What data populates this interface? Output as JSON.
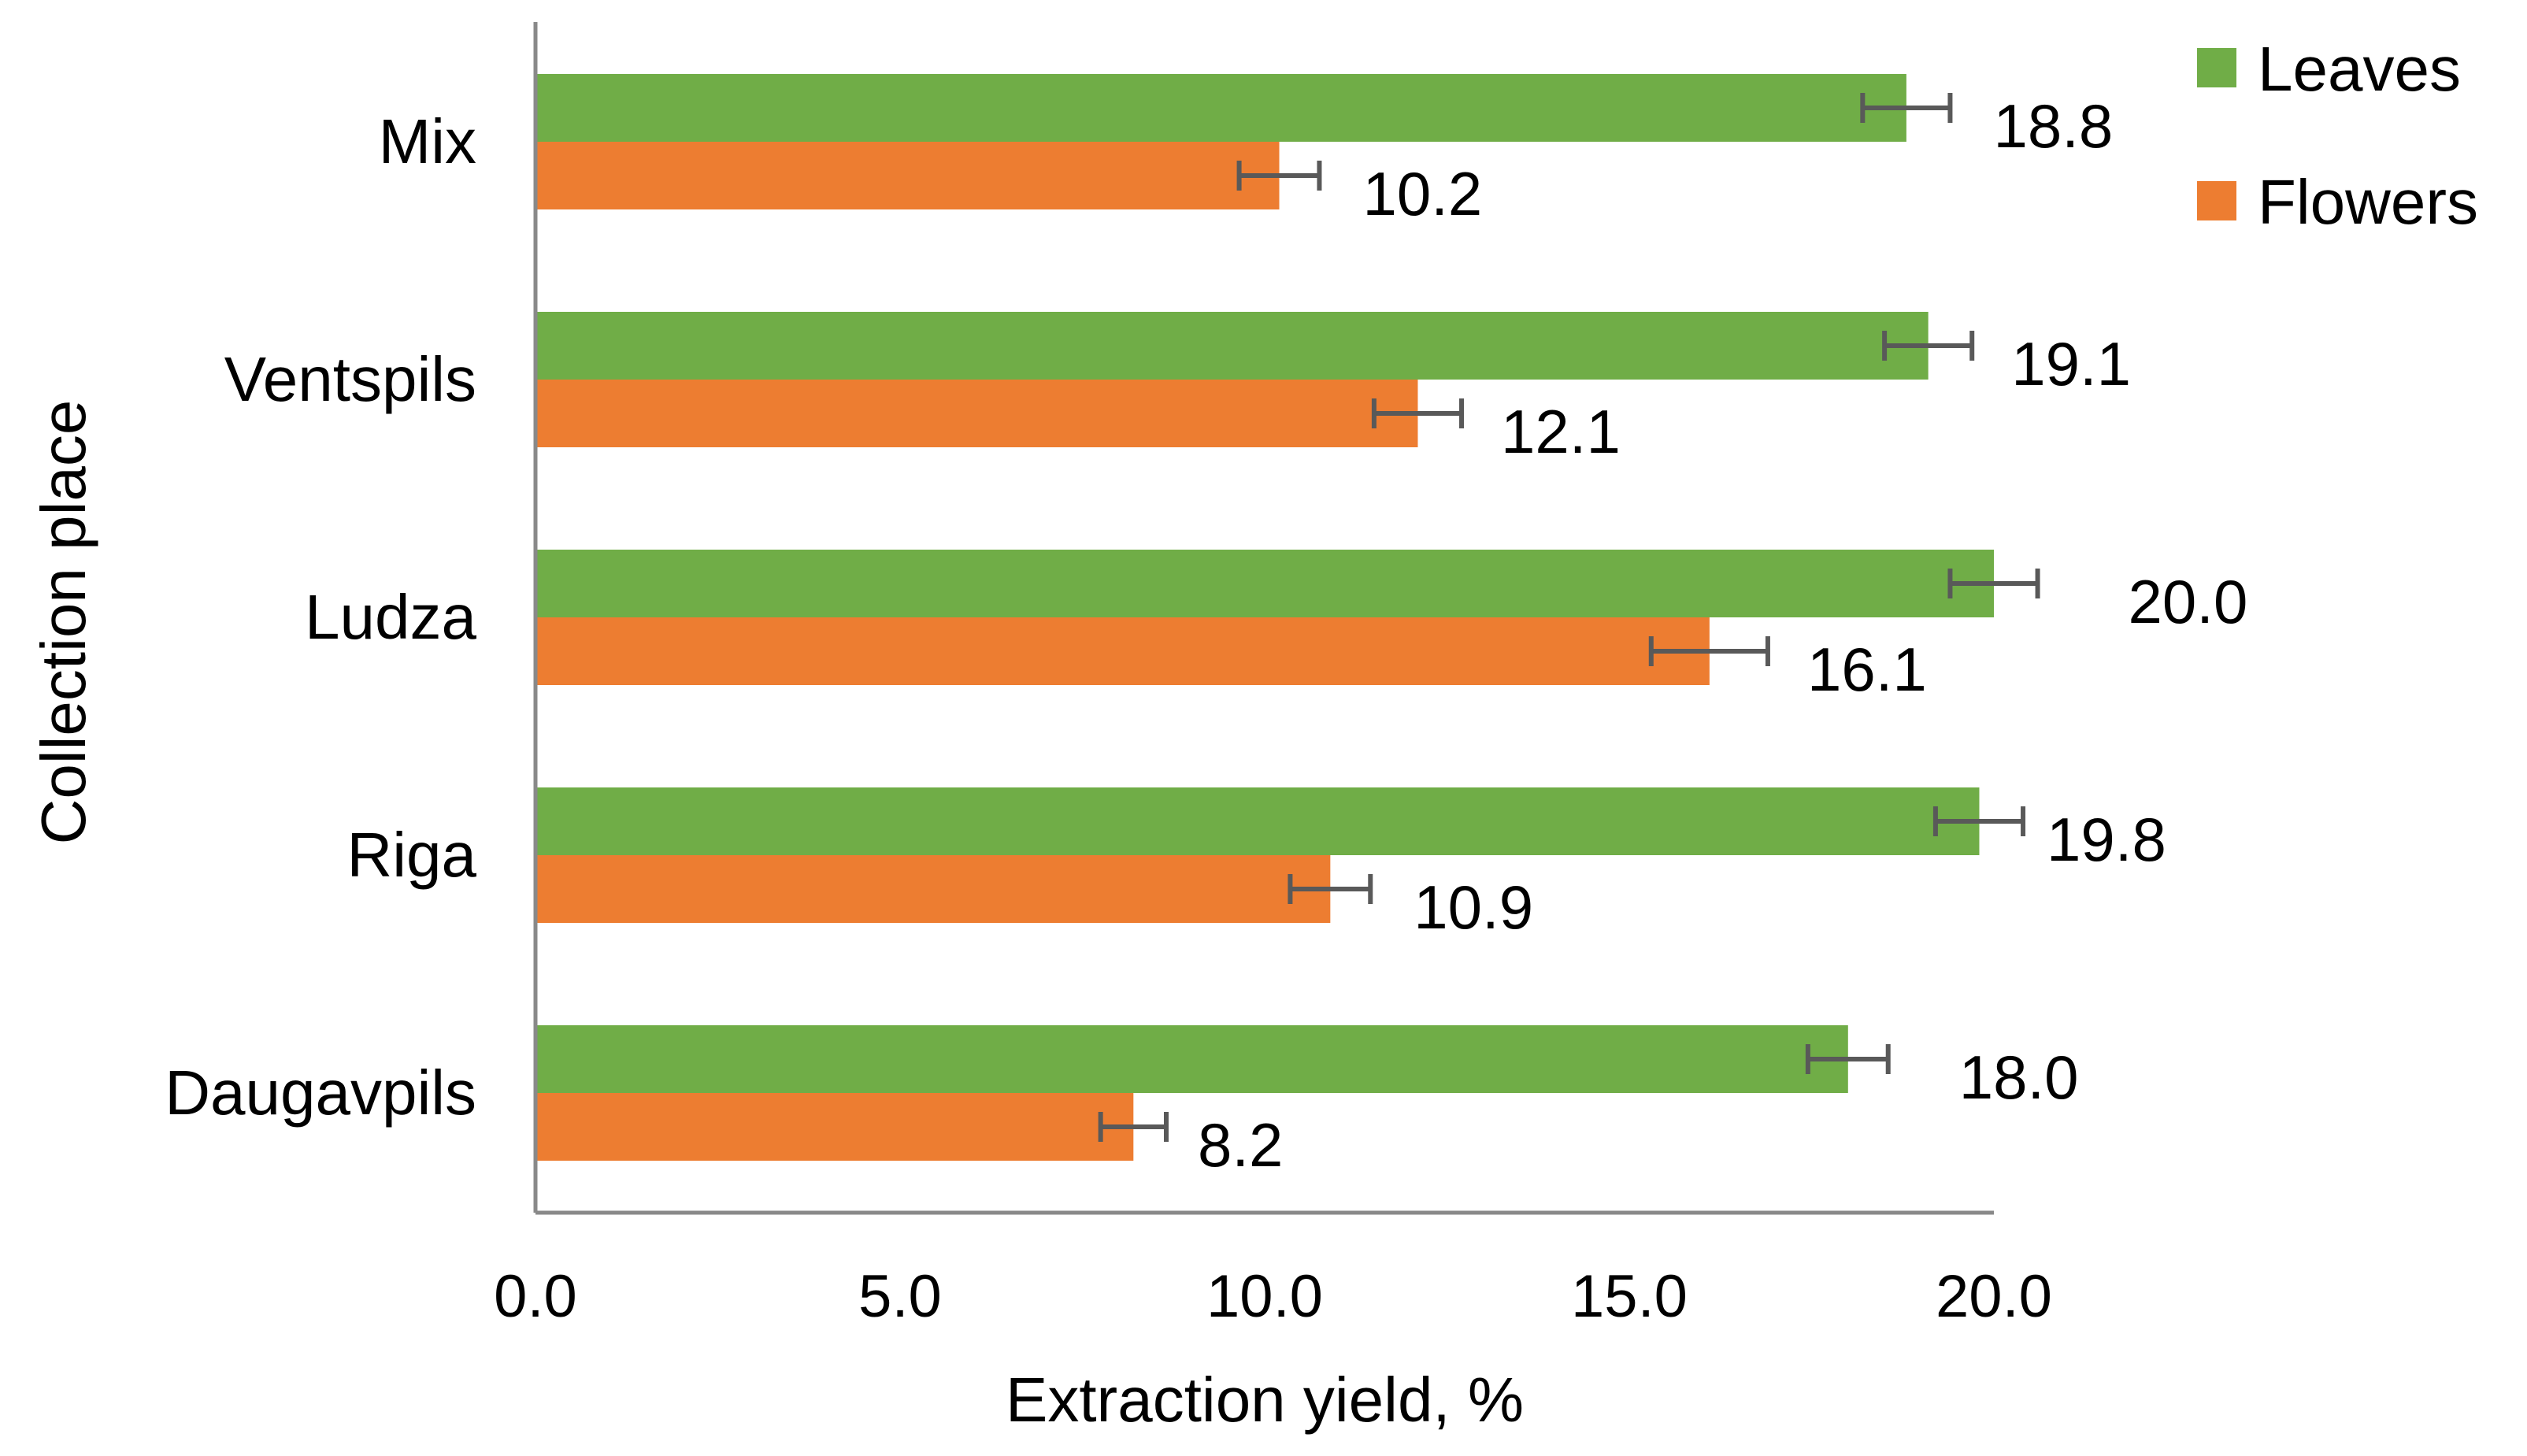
{
  "chart_data": {
    "type": "bar",
    "orientation": "horizontal",
    "title": "",
    "xlabel": "Extraction yield, %",
    "ylabel": "Collection place",
    "categories": [
      "Mix",
      "Ventspils",
      "Ludza",
      "Riga",
      "Daugavpils"
    ],
    "series": [
      {
        "name": "Leaves",
        "color": "#70ad47",
        "values": [
          18.8,
          19.1,
          20.0,
          19.8,
          18.0
        ],
        "value_labels": [
          "18.8",
          "19.1",
          "20.0",
          "19.8",
          "18.0"
        ],
        "errors": [
          0.6,
          0.6,
          0.6,
          0.6,
          0.55
        ]
      },
      {
        "name": "Flowers",
        "color": "#ed7d31",
        "values": [
          10.2,
          12.1,
          16.1,
          10.9,
          8.2
        ],
        "value_labels": [
          "10.2",
          "12.1",
          "16.1",
          "10.9",
          "8.2"
        ],
        "errors": [
          0.55,
          0.6,
          0.8,
          0.55,
          0.45
        ]
      }
    ],
    "xlim": [
      0,
      20
    ],
    "xticks": [
      0,
      5,
      10,
      15,
      20
    ],
    "xtick_labels": [
      "0.0",
      "5.0",
      "10.0",
      "15.0",
      "20.0"
    ],
    "grid": false,
    "legend_position": "top-right",
    "error_bar_color": "#595959",
    "axis_color": "#898989"
  }
}
